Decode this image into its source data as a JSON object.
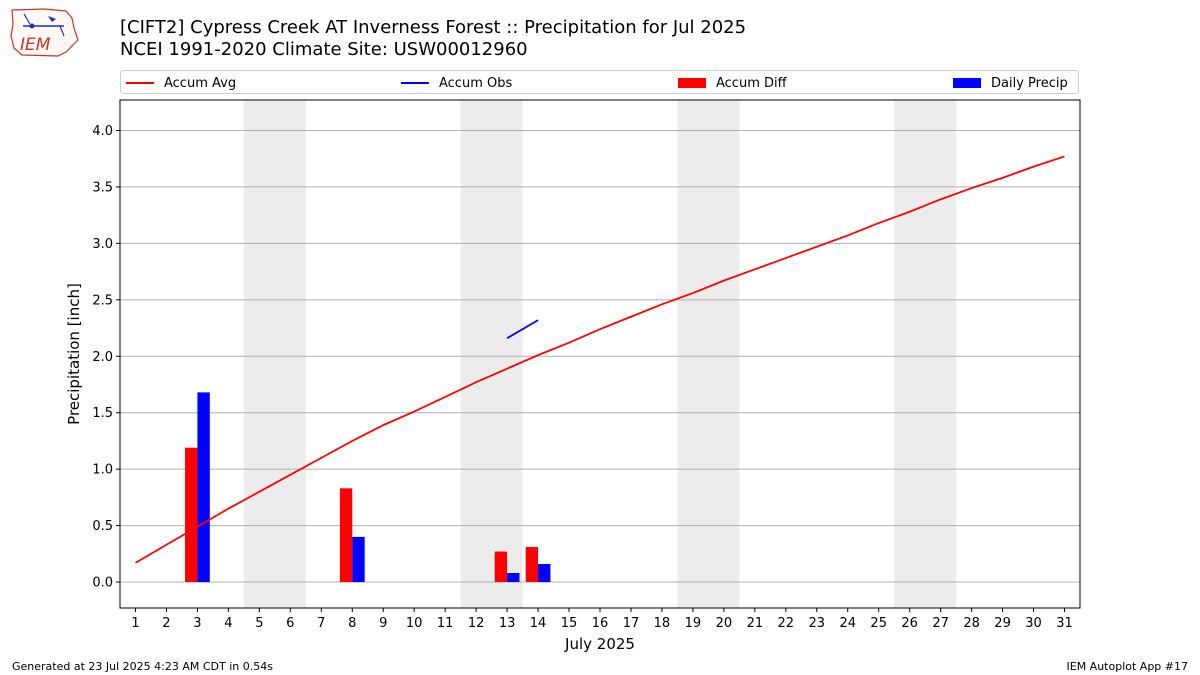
{
  "header": {
    "title_line1": "[CIFT2] Cypress Creek  AT Inverness Forest :: Precipitation for Jul 2025",
    "title_line2": "NCEI 1991-2020 Climate Site: USW00012960",
    "logo_text": "IEM"
  },
  "footer": {
    "generated": "Generated at 23 Jul 2025 4:23 AM CDT in 0.54s",
    "app": "IEM Autoplot App #17"
  },
  "legend": [
    {
      "label": "Accum Avg",
      "kind": "line",
      "color": "#ff0000"
    },
    {
      "label": "Accum Obs",
      "kind": "line",
      "color": "#0000ff"
    },
    {
      "label": "Accum Diff",
      "kind": "box",
      "color": "#ff0000"
    },
    {
      "label": "Daily Precip",
      "kind": "box",
      "color": "#0000ff"
    }
  ],
  "chart_data": {
    "type": "bar",
    "xlabel": "July 2025",
    "ylabel": "Precipitation [inch]",
    "x_ticks": [
      1,
      2,
      3,
      4,
      5,
      6,
      7,
      8,
      9,
      10,
      11,
      12,
      13,
      14,
      15,
      16,
      17,
      18,
      19,
      20,
      21,
      22,
      23,
      24,
      25,
      26,
      27,
      28,
      29,
      30,
      31
    ],
    "y_ticks": [
      "0.0",
      "0.5",
      "1.0",
      "1.5",
      "2.0",
      "2.5",
      "3.0",
      "3.5",
      "4.0"
    ],
    "ylim": [
      -0.23,
      4.27
    ],
    "xlim": [
      0.5,
      31.5
    ],
    "grid": "horizontal",
    "weekend_shading": [
      [
        4.5,
        6.5
      ],
      [
        11.5,
        13.5
      ],
      [
        18.5,
        20.5
      ],
      [
        25.5,
        27.5
      ]
    ],
    "series": [
      {
        "name": "Accum Avg",
        "kind": "line",
        "color": "#ff0000",
        "x": [
          1,
          2,
          3,
          4,
          5,
          6,
          7,
          8,
          9,
          10,
          11,
          12,
          13,
          14,
          15,
          16,
          17,
          18,
          19,
          20,
          21,
          22,
          23,
          24,
          25,
          26,
          27,
          28,
          29,
          30,
          31
        ],
        "values": [
          0.17,
          0.33,
          0.49,
          0.65,
          0.8,
          0.95,
          1.1,
          1.25,
          1.39,
          1.51,
          1.64,
          1.77,
          1.89,
          2.01,
          2.12,
          2.24,
          2.35,
          2.46,
          2.56,
          2.67,
          2.77,
          2.87,
          2.97,
          3.07,
          3.18,
          3.28,
          3.39,
          3.49,
          3.58,
          3.68,
          3.77
        ]
      },
      {
        "name": "Accum Obs",
        "kind": "line",
        "color": "#0000ff",
        "x": [
          13,
          14
        ],
        "values": [
          2.16,
          2.32
        ]
      },
      {
        "name": "Accum Diff",
        "kind": "bar",
        "color": "#ff0000",
        "x": [
          3,
          8,
          13,
          14
        ],
        "values": [
          1.19,
          0.83,
          0.27,
          0.31
        ]
      },
      {
        "name": "Daily Precip",
        "kind": "bar",
        "color": "#0000ff",
        "x": [
          3,
          8,
          13,
          14
        ],
        "values": [
          1.68,
          0.4,
          0.08,
          0.16
        ]
      }
    ]
  }
}
